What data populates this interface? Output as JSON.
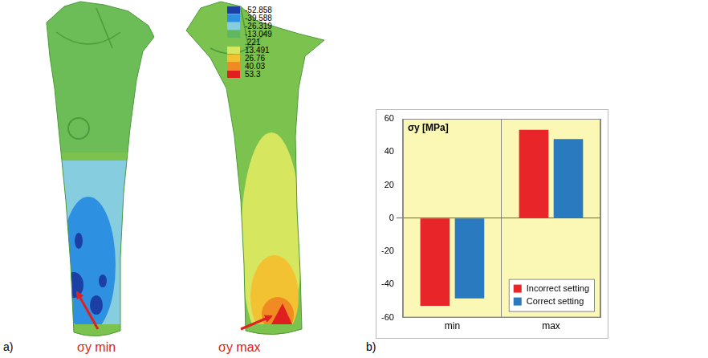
{
  "panel_labels": [
    "a)",
    "b)"
  ],
  "diagram": {
    "colorbar": {
      "values": [
        -52.858,
        -39.588,
        -26.319,
        -13.049,
        {
          "value": 0.221,
          "label": ".221"
        },
        13.491,
        26.76,
        40.03,
        53.3
      ],
      "colors": [
        "#1c3fa6",
        "#2e90e0",
        "#86cde0",
        "#5fb85f",
        "#7cc24e",
        "#d6e65e",
        "#f2c232",
        "#f08a22",
        "#e02020"
      ]
    },
    "annotations": [
      "σy min",
      "σy max"
    ]
  },
  "chart_data": {
    "type": "bar",
    "y_label": "σy [MPa]",
    "categories": [
      "min",
      "max"
    ],
    "series": [
      {
        "name": "Incorrect setting",
        "color": "#e8262a",
        "values": [
          -52.9,
          53.3
        ]
      },
      {
        "name": "Correct setting",
        "color": "#2a7abf",
        "values": [
          -48.5,
          47.8
        ]
      }
    ],
    "ylim": [
      -60,
      60
    ],
    "yticks": [
      -60,
      -40,
      -20,
      0,
      20,
      40,
      60
    ],
    "grid": true,
    "legend": "lower right"
  }
}
